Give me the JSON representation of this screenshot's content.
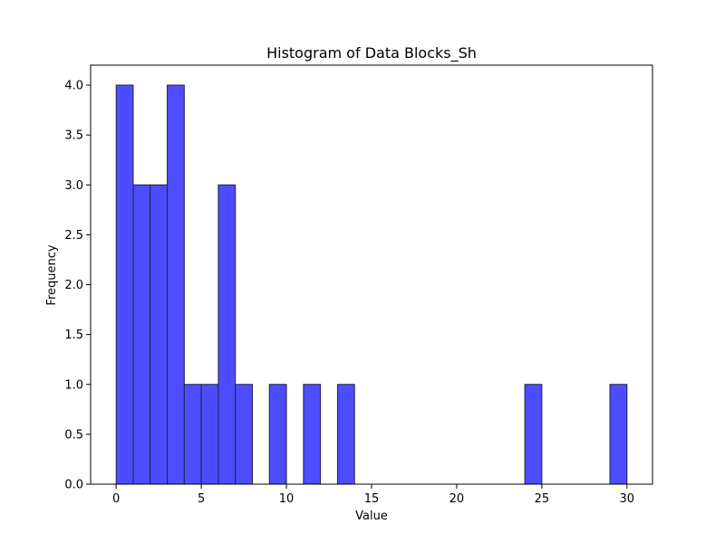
{
  "chart_data": {
    "type": "bar",
    "title": "Histogram of Data Blocks_Sh",
    "xlabel": "Value",
    "ylabel": "Frequency",
    "xlim": [
      -1.5,
      31.5
    ],
    "ylim": [
      0,
      4.2
    ],
    "xticks": [
      0,
      5,
      10,
      15,
      20,
      25,
      30
    ],
    "xtick_labels": [
      "0",
      "5",
      "10",
      "15",
      "20",
      "25",
      "30"
    ],
    "yticks": [
      0,
      0.5,
      1.0,
      1.5,
      2.0,
      2.5,
      3.0,
      3.5,
      4.0
    ],
    "ytick_labels": [
      "0.0",
      "0.5",
      "1.0",
      "1.5",
      "2.0",
      "2.5",
      "3.0",
      "3.5",
      "4.0"
    ],
    "bin_edges": [
      0,
      1,
      2,
      3,
      4,
      5,
      6,
      7,
      8,
      9,
      10,
      11,
      12,
      13,
      14,
      15,
      16,
      17,
      18,
      19,
      20,
      21,
      22,
      23,
      24,
      25,
      26,
      27,
      28,
      29,
      30
    ],
    "bins": [
      {
        "start": 0,
        "end": 1,
        "count": 4
      },
      {
        "start": 1,
        "end": 2,
        "count": 3
      },
      {
        "start": 2,
        "end": 3,
        "count": 3
      },
      {
        "start": 3,
        "end": 4,
        "count": 4
      },
      {
        "start": 4,
        "end": 5,
        "count": 1
      },
      {
        "start": 5,
        "end": 6,
        "count": 1
      },
      {
        "start": 6,
        "end": 7,
        "count": 3
      },
      {
        "start": 7,
        "end": 8,
        "count": 1
      },
      {
        "start": 8,
        "end": 9,
        "count": 0
      },
      {
        "start": 9,
        "end": 10,
        "count": 1
      },
      {
        "start": 10,
        "end": 11,
        "count": 0
      },
      {
        "start": 11,
        "end": 12,
        "count": 1
      },
      {
        "start": 12,
        "end": 13,
        "count": 0
      },
      {
        "start": 13,
        "end": 14,
        "count": 1
      },
      {
        "start": 14,
        "end": 15,
        "count": 0
      },
      {
        "start": 15,
        "end": 16,
        "count": 0
      },
      {
        "start": 16,
        "end": 17,
        "count": 0
      },
      {
        "start": 17,
        "end": 18,
        "count": 0
      },
      {
        "start": 18,
        "end": 19,
        "count": 0
      },
      {
        "start": 19,
        "end": 20,
        "count": 0
      },
      {
        "start": 20,
        "end": 21,
        "count": 0
      },
      {
        "start": 21,
        "end": 22,
        "count": 0
      },
      {
        "start": 22,
        "end": 23,
        "count": 0
      },
      {
        "start": 23,
        "end": 24,
        "count": 0
      },
      {
        "start": 24,
        "end": 25,
        "count": 1
      },
      {
        "start": 25,
        "end": 26,
        "count": 0
      },
      {
        "start": 26,
        "end": 27,
        "count": 0
      },
      {
        "start": 27,
        "end": 28,
        "count": 0
      },
      {
        "start": 28,
        "end": 29,
        "count": 0
      },
      {
        "start": 29,
        "end": 30,
        "count": 1
      }
    ],
    "bar_color": "#4d4dff",
    "bar_edge_color": "#222244",
    "grid": false,
    "legend": "none"
  }
}
